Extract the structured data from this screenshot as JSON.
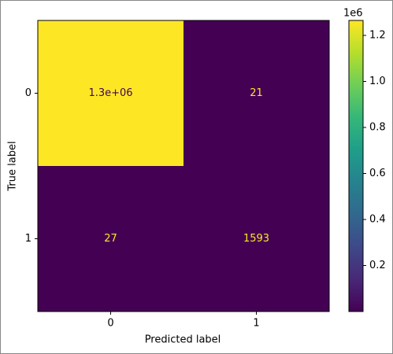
{
  "chart_data": {
    "type": "heatmap",
    "x_label": "Predicted label",
    "y_label": "True label",
    "x_categories": [
      "0",
      "1"
    ],
    "y_categories": [
      "0",
      "1"
    ],
    "values": [
      [
        1265000,
        21
      ],
      [
        27,
        1593
      ]
    ],
    "value_labels": [
      [
        "1.3e+06",
        "21"
      ],
      [
        "27",
        "1593"
      ]
    ],
    "colormap": "viridis",
    "clim": [
      21,
      1265000
    ],
    "cticks": [
      {
        "value": 200000,
        "label": "0.2"
      },
      {
        "value": 400000,
        "label": "0.4"
      },
      {
        "value": 600000,
        "label": "0.6"
      },
      {
        "value": 800000,
        "label": "0.8"
      },
      {
        "value": 1000000,
        "label": "1.0"
      },
      {
        "value": 1200000,
        "label": "1.2"
      }
    ],
    "colorbar_offset": "1e6"
  }
}
